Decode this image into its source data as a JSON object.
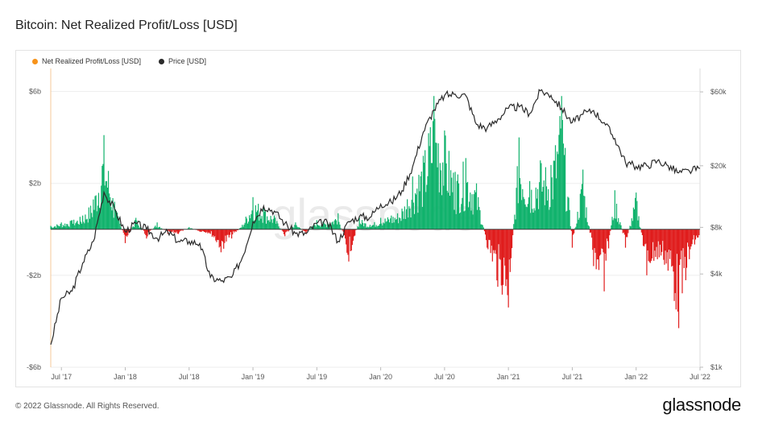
{
  "title": "Bitcoin: Net Realized Profit/Loss [USD]",
  "footer": {
    "copyright": "© 2022 Glassnode. All Rights Reserved.",
    "brand": "glassnode"
  },
  "watermark": "glassnode",
  "colors": {
    "positive": "#10b26c",
    "negative": "#e01c1c",
    "price": "#2b2b2b",
    "legend_profit": "#f7931a",
    "zero_line": "#444444",
    "grid": "#eeeeee"
  },
  "chart_data": {
    "type": "bar",
    "title": "Bitcoin: Net Realized Profit/Loss [USD]",
    "legend": [
      {
        "name": "Net Realized Profit/Loss [USD]",
        "color": "#f7931a"
      },
      {
        "name": "Price [USD]",
        "color": "#2b2b2b"
      }
    ],
    "x_ticks": [
      "Jul '17",
      "Jan '18",
      "Jul '18",
      "Jan '19",
      "Jul '19",
      "Jan '20",
      "Jul '20",
      "Jan '21",
      "Jul '21",
      "Jan '22",
      "Jul '22"
    ],
    "y_left_ticks": [
      "$6b",
      "$2b",
      "-$2b",
      "-$6b"
    ],
    "y_left_values": [
      6,
      2,
      -2,
      -6
    ],
    "y_left_range": [
      -6,
      7
    ],
    "y_right_ticks": [
      "$60k",
      "$20k",
      "$8k",
      "$4k",
      "$1k"
    ],
    "y_right_values": [
      60000,
      20000,
      8000,
      4000,
      1000
    ],
    "y_right_scale": "log",
    "y_right_range": [
      1000,
      85000
    ],
    "x_range_months": [
      0,
      61
    ],
    "series": [
      {
        "name": "Net Realized Profit/Loss [USD] (billions, monthly peaks)",
        "x_months": [
          0,
          1,
          2,
          3,
          4,
          5,
          6,
          7,
          8,
          9,
          10,
          11,
          12,
          13,
          14,
          15,
          16,
          17,
          18,
          19,
          20,
          21,
          22,
          23,
          24,
          25,
          26,
          27,
          28,
          29,
          30,
          31,
          32,
          33,
          34,
          35,
          36,
          37,
          38,
          39,
          40,
          41,
          42,
          43,
          44,
          45,
          46,
          47,
          48,
          49,
          50,
          51,
          52,
          53,
          54,
          55,
          56,
          57,
          58,
          59,
          60,
          61
        ],
        "values": [
          0.15,
          0.3,
          0.4,
          0.6,
          1.3,
          4.1,
          1.2,
          -0.6,
          0.5,
          -0.4,
          0.3,
          -0.2,
          -0.2,
          0.1,
          -0.1,
          -0.2,
          -1.0,
          -0.4,
          0.2,
          1.4,
          1.0,
          0.6,
          -0.3,
          0.3,
          -0.2,
          0.4,
          0.3,
          0.7,
          -1.4,
          0.5,
          0.2,
          0.5,
          0.6,
          0.9,
          2.3,
          3.2,
          5.8,
          4.3,
          2.5,
          3.1,
          2.0,
          -0.8,
          -2.5,
          -3.4,
          4.0,
          2.1,
          3.0,
          2.8,
          5.8,
          -0.8,
          2.6,
          -1.6,
          -2.7,
          1.7,
          -0.8,
          1.6,
          -2.0,
          -1.3,
          -1.8,
          -4.3,
          -1.3,
          -0.3
        ]
      },
      {
        "name": "Price [USD]",
        "x_months": [
          0,
          1,
          2,
          3,
          4,
          5,
          6,
          7,
          8,
          9,
          10,
          11,
          12,
          13,
          14,
          15,
          16,
          17,
          18,
          19,
          20,
          21,
          22,
          23,
          24,
          25,
          26,
          27,
          28,
          29,
          30,
          31,
          32,
          33,
          34,
          35,
          36,
          37,
          38,
          39,
          40,
          41,
          42,
          43,
          44,
          45,
          46,
          47,
          48,
          49,
          50,
          51,
          52,
          53,
          54,
          55,
          56,
          57,
          58,
          59,
          60,
          61
        ],
        "values": [
          1400,
          2800,
          3100,
          4700,
          6500,
          13500,
          10500,
          7500,
          8500,
          7800,
          6800,
          7500,
          6500,
          6500,
          6300,
          3800,
          3600,
          3800,
          5100,
          8700,
          11000,
          10200,
          8500,
          7300,
          7300,
          8500,
          8600,
          6500,
          8700,
          9400,
          9300,
          11300,
          11600,
          13800,
          19700,
          33000,
          46000,
          57000,
          58000,
          56800,
          37000,
          35000,
          40000,
          47000,
          48000,
          43500,
          61000,
          57000,
          47000,
          38000,
          43000,
          45500,
          38000,
          30000,
          21000,
          19800,
          20000,
          21500,
          20000,
          18000,
          18500,
          19200
        ]
      }
    ]
  }
}
